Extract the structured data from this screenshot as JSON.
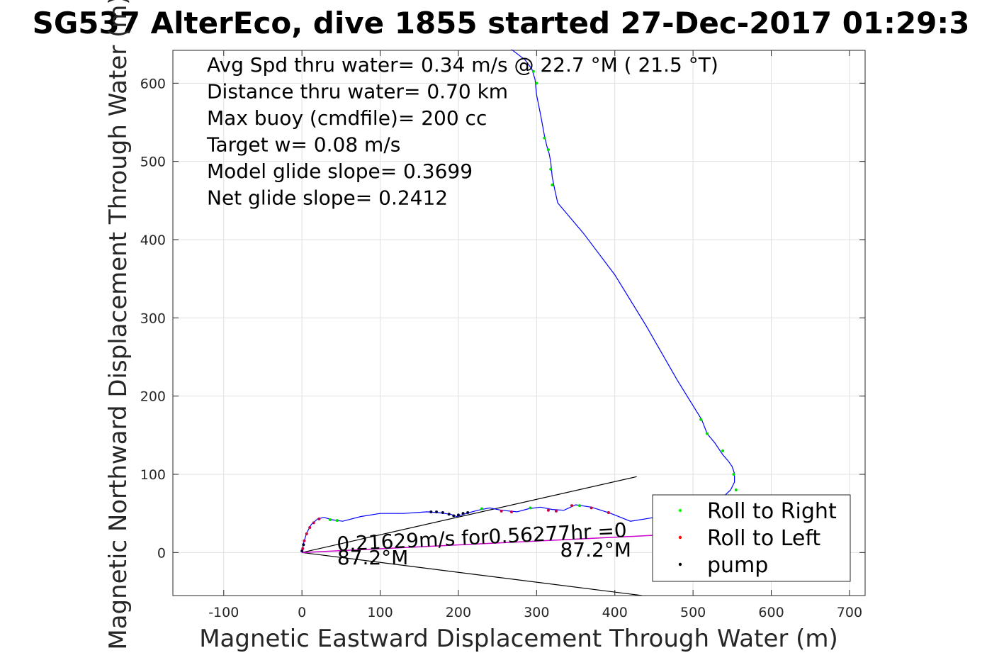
{
  "chart_data": {
    "type": "line",
    "title": "SG537 AlterEco, dive 1855 started 27-Dec-2017 01:29:3",
    "xlabel": "Magnetic Eastward Displacement Through Water (m)",
    "ylabel": "Magnetic Northward Displacement Through Water (m)",
    "xlim": [
      -165,
      720
    ],
    "ylim": [
      -55,
      642
    ],
    "xticks": [
      -100,
      0,
      100,
      200,
      300,
      400,
      500,
      600,
      700
    ],
    "xtick_labels": [
      "-100",
      "0",
      "100",
      "200",
      "300",
      "400",
      "500",
      "600",
      "700"
    ],
    "yticks": [
      0,
      100,
      200,
      300,
      400,
      500,
      600
    ],
    "ytick_labels": [
      "0",
      "100",
      "200",
      "300",
      "400",
      "500",
      "600"
    ],
    "grid": true,
    "info_lines": [
      "Avg Spd thru water=  0.34 m/s @  22.7 °M ( 21.5 °T)",
      "Distance thru water=  0.70 km",
      "Max buoy (cmdfile)= 200 cc",
      "Target w= 0.08 m/s",
      "Model glide slope= 0.3699",
      "Net glide slope= 0.2412"
    ],
    "annotations": [
      {
        "text": "0.21629m/s for0.56277hr =0",
        "x": 45,
        "y": 2,
        "angle": 2.8
      },
      {
        "text": "87.2°M",
        "x": 45,
        "y": -15,
        "angle": 0
      },
      {
        "text": "87.2°M",
        "x": 330,
        "y": -5,
        "angle": 0
      }
    ],
    "wedge_lines": [
      {
        "from": [
          0,
          0
        ],
        "to": [
          428,
          97
        ]
      },
      {
        "from": [
          0,
          0
        ],
        "to": [
          435,
          -55
        ]
      }
    ],
    "net_line": {
      "name": "",
      "color": "#cc00cc",
      "points": [
        [
          0,
          0
        ],
        [
          450,
          22
        ]
      ]
    },
    "track": {
      "color": "#0000ff",
      "points": [
        [
          0,
          0
        ],
        [
          2,
          12
        ],
        [
          6,
          25
        ],
        [
          12,
          36
        ],
        [
          20,
          43
        ],
        [
          28,
          45
        ],
        [
          38,
          42
        ],
        [
          52,
          40
        ],
        [
          75,
          46
        ],
        [
          100,
          50
        ],
        [
          130,
          50
        ],
        [
          160,
          52
        ],
        [
          175,
          51
        ],
        [
          190,
          49
        ],
        [
          198,
          46
        ],
        [
          210,
          50
        ],
        [
          225,
          54
        ],
        [
          240,
          57
        ],
        [
          255,
          54
        ],
        [
          275,
          52
        ],
        [
          290,
          56
        ],
        [
          305,
          58
        ],
        [
          320,
          55
        ],
        [
          335,
          54
        ],
        [
          350,
          61
        ],
        [
          370,
          58
        ],
        [
          395,
          50
        ],
        [
          420,
          40
        ],
        [
          445,
          44
        ],
        [
          470,
          49
        ],
        [
          495,
          53
        ],
        [
          520,
          58
        ],
        [
          535,
          68
        ],
        [
          548,
          80
        ],
        [
          553,
          90
        ],
        [
          553,
          101
        ],
        [
          550,
          110
        ],
        [
          545,
          117
        ],
        [
          538,
          125
        ],
        [
          528,
          140
        ],
        [
          518,
          152
        ],
        [
          511,
          170
        ],
        [
          480,
          220
        ],
        [
          440,
          290
        ],
        [
          400,
          355
        ],
        [
          360,
          408
        ],
        [
          327,
          447
        ],
        [
          323,
          465
        ],
        [
          320,
          480
        ],
        [
          318,
          500
        ],
        [
          316,
          510
        ],
        [
          313,
          520
        ],
        [
          310,
          533
        ],
        [
          305,
          560
        ],
        [
          300,
          585
        ],
        [
          298,
          605
        ],
        [
          294,
          618
        ],
        [
          285,
          630
        ],
        [
          272,
          640
        ],
        [
          268,
          643
        ]
      ]
    },
    "roll_right_points": [
      [
        36,
        42
      ],
      [
        45,
        41
      ],
      [
        230,
        56
      ],
      [
        292,
        57
      ],
      [
        355,
        60
      ],
      [
        518,
        152
      ],
      [
        538,
        130
      ],
      [
        552,
        100
      ],
      [
        555,
        80
      ],
      [
        315,
        515
      ],
      [
        318,
        490
      ],
      [
        320,
        470
      ],
      [
        300,
        600
      ],
      [
        296,
        615
      ],
      [
        510,
        170
      ],
      [
        310,
        530
      ]
    ],
    "roll_left_points": [
      [
        1,
        5
      ],
      [
        3,
        15
      ],
      [
        6,
        24
      ],
      [
        10,
        32
      ],
      [
        15,
        38
      ],
      [
        22,
        43
      ],
      [
        255,
        53
      ],
      [
        268,
        52
      ],
      [
        315,
        54
      ],
      [
        325,
        53
      ],
      [
        345,
        60
      ],
      [
        370,
        57
      ],
      [
        392,
        51
      ]
    ],
    "pump_points": [
      [
        165,
        52
      ],
      [
        172,
        52
      ],
      [
        180,
        51
      ],
      [
        188,
        49
      ],
      [
        194,
        47
      ],
      [
        200,
        48
      ],
      [
        206,
        50
      ],
      [
        212,
        51
      ],
      [
        2,
        10
      ],
      [
        0,
        2
      ]
    ],
    "legend": {
      "position": "bottom-right",
      "entries": [
        {
          "label": "Roll to Right",
          "color": "#00ff00"
        },
        {
          "label": "Roll to Left",
          "color": "#ff0000"
        },
        {
          "label": "pump",
          "color": "#000000"
        }
      ]
    }
  }
}
